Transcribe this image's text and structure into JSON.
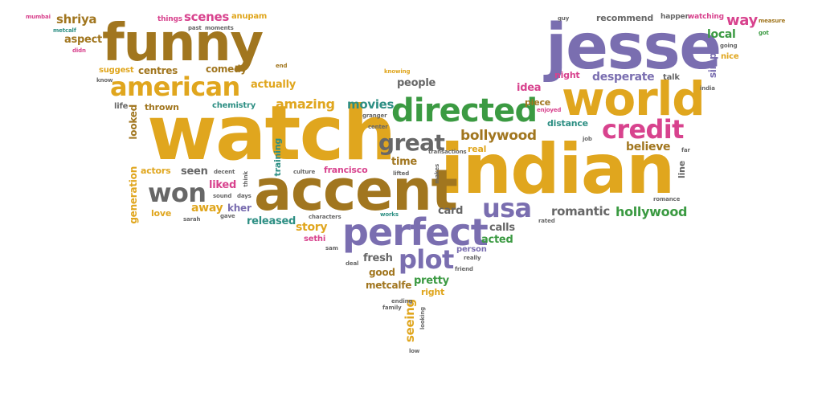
{
  "palette": {
    "gold": "#e0a61e",
    "brown": "#a1761f",
    "purple": "#7a6eb0",
    "green": "#3b9a42",
    "gray": "#676767",
    "pink": "#d8438e",
    "teal": "#2e8f84"
  },
  "words": {
    "watch": "watch",
    "indian": "indian",
    "jesse": "jesse",
    "accent": "accent",
    "funny": "funny",
    "world": "world",
    "perfect": "perfect",
    "directed": "directed",
    "american": "american",
    "credit": "credit",
    "usa": "usa",
    "won": "won",
    "plot": "plot",
    "great": "great",
    "bollywood": "bollywood",
    "amazing": "amazing",
    "hollywood": "hollywood",
    "romantic": "romantic",
    "believe": "believe",
    "desperate": "desperate",
    "scenes": "scenes",
    "shriya": "shriya",
    "movies": "movies",
    "people": "people",
    "way": "way",
    "seeing": "seeing",
    "local": "local",
    "simple": "simple",
    "story": "story",
    "released": "released",
    "actually": "actually",
    "comedy": "comedy",
    "centres": "centres",
    "aspect": "aspect",
    "time": "time",
    "card": "card",
    "calls": "calls",
    "acted": "acted",
    "fresh": "fresh",
    "good": "good",
    "metcalfe": "metcalfe",
    "pretty": "pretty",
    "right": "right",
    "seen": "seen",
    "away": "away",
    "liked": "liked",
    "kher": "kher",
    "actors": "actors",
    "generation": "generation",
    "looked": "looked",
    "thrown": "thrown",
    "chemistry": "chemistry",
    "training": "training",
    "francisco": "francisco",
    "suggest": "suggest",
    "life": "life",
    "anupam": "anupam",
    "things": "things",
    "past": "past",
    "moments": "moments",
    "mumbai": "mumbai",
    "metcalf": "metcalf",
    "didn": "didn",
    "know": "know",
    "end": "end",
    "knowing": "knowing",
    "recommend": "recommend",
    "happen": "happen",
    "watching": "watching",
    "measure": "measure",
    "got": "got",
    "guy": "guy",
    "nice": "nice",
    "talk": "talk",
    "india": "india",
    "night": "night",
    "idea": "idea",
    "piece": "piece",
    "enjoyed": "enjoyed",
    "distance": "distance",
    "job": "job",
    "far": "far",
    "line": "line",
    "romance": "romance",
    "rated": "rated",
    "real": "real",
    "transactions": "transactions",
    "granger": "granger",
    "center": "center",
    "makes": "makes",
    "lifted": "lifted",
    "works": "works",
    "characters": "characters",
    "culture": "culture",
    "think": "think",
    "decent": "decent",
    "sound": "sound",
    "days": "days",
    "gave": "gave",
    "sarah": "sarah",
    "love": "love",
    "sethi": "sethi",
    "sam": "sam",
    "deal": "deal",
    "person": "person",
    "really": "really",
    "friend": "friend",
    "ending": "ending",
    "family": "family",
    "looking": "looking",
    "low": "low",
    "going": "going"
  }
}
